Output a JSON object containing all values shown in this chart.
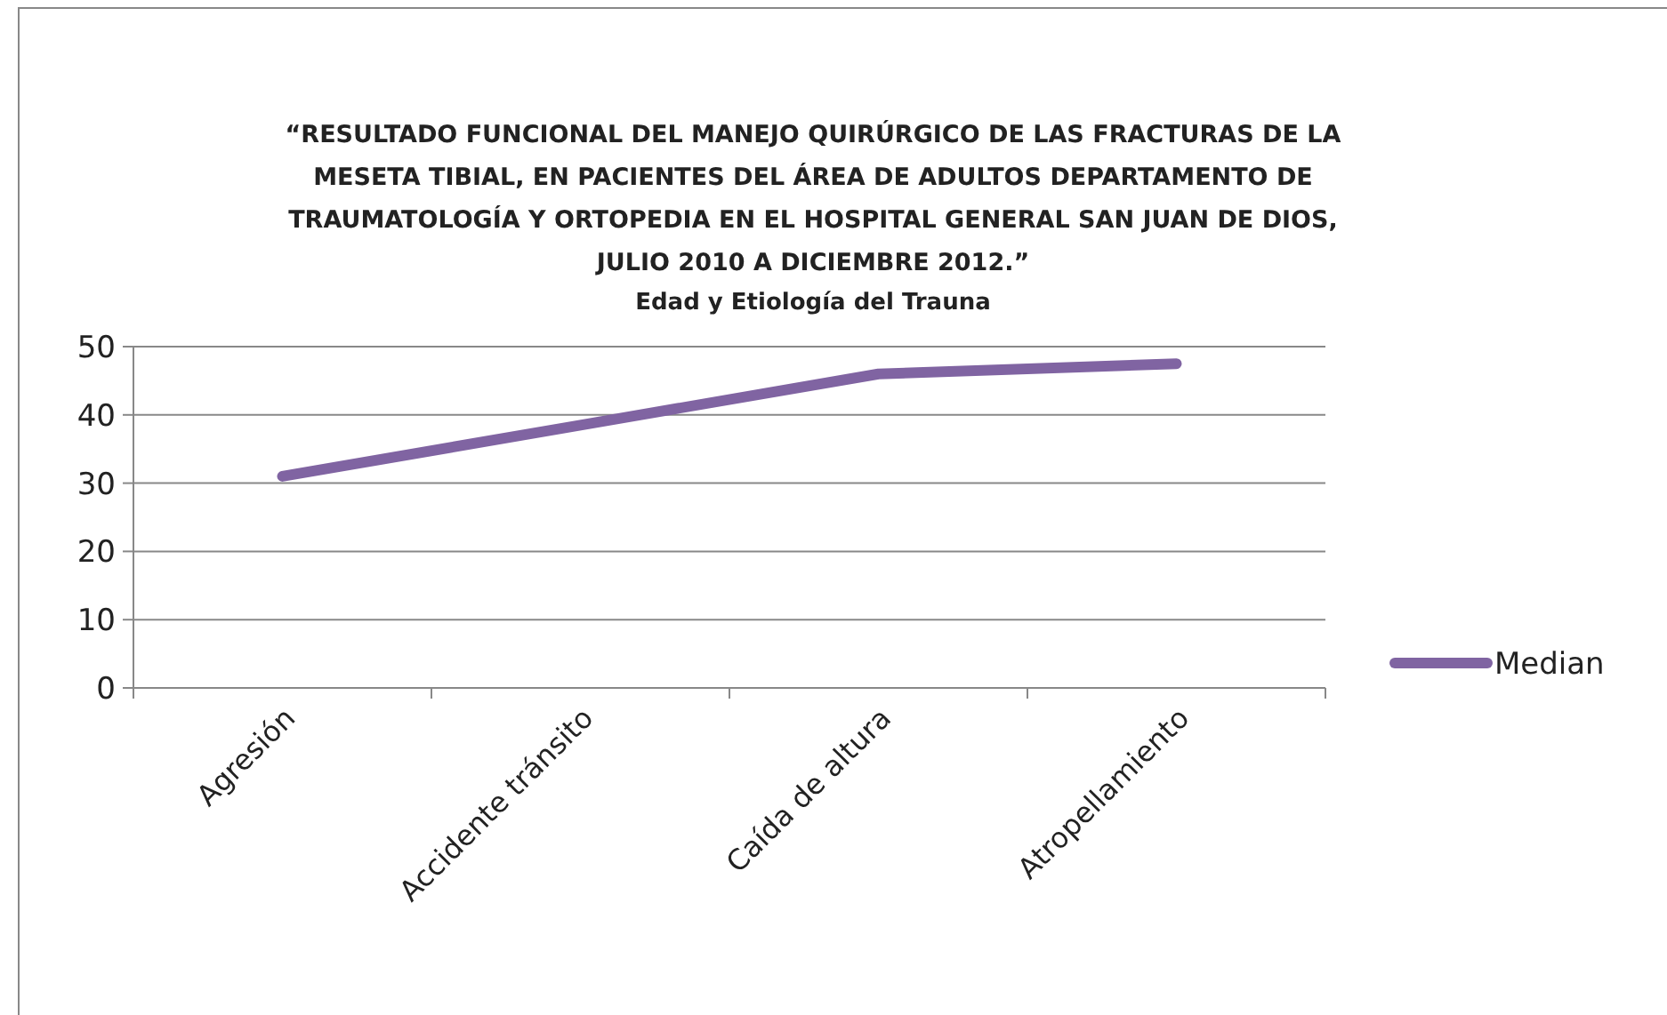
{
  "chart_data": {
    "type": "line",
    "title": "“RESULTADO FUNCIONAL DEL MANEJO QUIRÚRGICO DE LAS FRACTURAS DE LA\nMESETA TIBIAL, EN PACIENTES DEL ÁREA DE ADULTOS DEPARTAMENTO DE\nTRAUMATOLOGÍA Y ORTOPEDIA EN EL  HOSPITAL GENERAL SAN JUAN DE DIOS,\nJULIO 2010 A DICIEMBRE 2012.”",
    "subtitle": "Edad y Etiología del Trauna",
    "categories": [
      "Agresión",
      "Accidente tránsito",
      "Caída de altura",
      "Atropellamiento"
    ],
    "series": [
      {
        "name": "Median",
        "color": "#8064a2",
        "values": [
          31,
          38.5,
          46,
          47.5
        ]
      }
    ],
    "ylim": [
      0,
      50
    ],
    "yticks": [
      0,
      10,
      20,
      30,
      40,
      50
    ],
    "grid": "y",
    "legend": "right",
    "marker": "none",
    "line_style": "solid"
  }
}
